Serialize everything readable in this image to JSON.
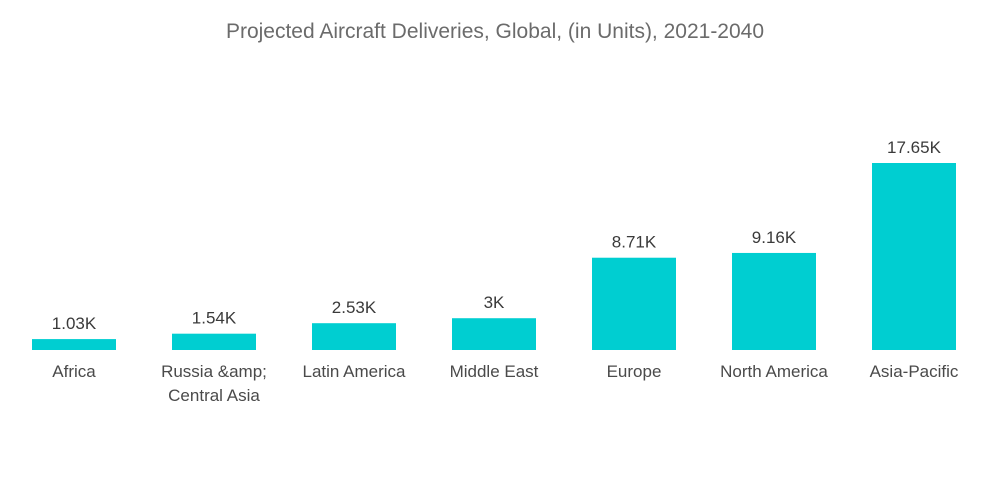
{
  "chart_data": {
    "type": "bar",
    "title": "Projected Aircraft Deliveries, Global, (in Units), 2021-2040",
    "xlabel": "",
    "ylabel": "",
    "categories": [
      "Africa",
      "Russia &amp; Central Asia",
      "Latin America",
      "Middle East",
      "Europe",
      "North America",
      "Asia-Pacific"
    ],
    "category_lines": [
      [
        "Africa"
      ],
      [
        "Russia &amp;",
        "Central Asia"
      ],
      [
        "Latin America"
      ],
      [
        "Middle East"
      ],
      [
        "Europe"
      ],
      [
        "North America"
      ],
      [
        "Asia-Pacific"
      ]
    ],
    "values": [
      1030,
      1540,
      2530,
      3000,
      8710,
      9160,
      17650
    ],
    "data_labels": [
      "1.03K",
      "1.54K",
      "2.53K",
      "3K",
      "8.71K",
      "9.16K",
      "17.65K"
    ],
    "ylim": [
      0,
      17650
    ],
    "grid": false,
    "legend": "none",
    "bar_color": "#00ced1"
  }
}
